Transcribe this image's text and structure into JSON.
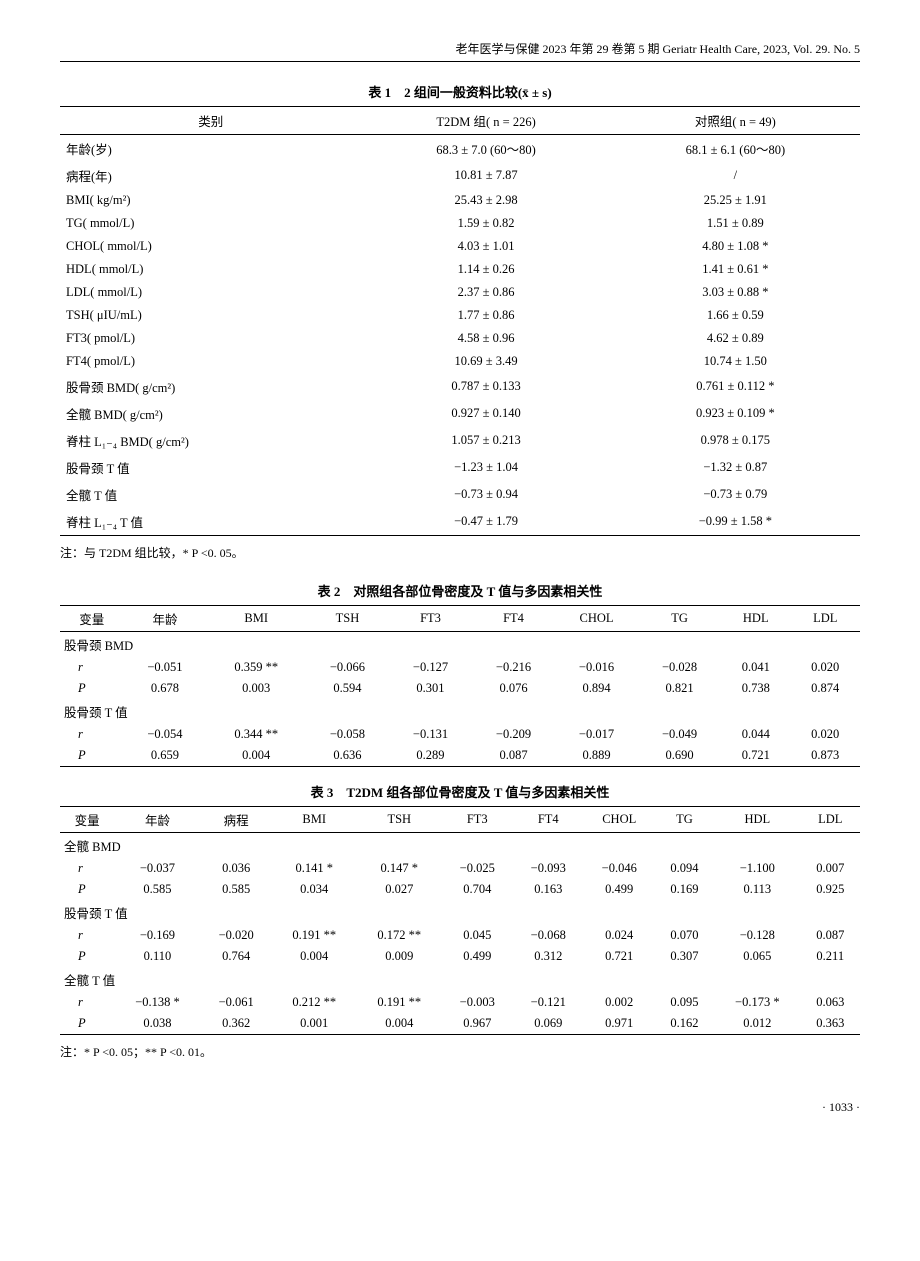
{
  "header": "老年医学与保健 2023 年第 29 卷第 5 期 Geriatr Health Care, 2023, Vol. 29. No. 5",
  "pageNum": "· 1033 ·",
  "table1": {
    "title": "表 1　2 组间一般资料比较(x̄ ± s)",
    "headers": [
      "类别",
      "T2DM 组( n = 226)",
      "对照组( n = 49)"
    ],
    "rows": [
      [
        "年龄(岁)",
        "68.3 ± 7.0 (60～80)",
        "68.1 ± 6.1 (60～80)"
      ],
      [
        "病程(年)",
        "10.81 ± 7.87",
        "/"
      ],
      [
        "BMI( kg/m²)",
        "25.43 ± 2.98",
        "25.25 ± 1.91"
      ],
      [
        "TG( mmol/L)",
        "1.59 ± 0.82",
        "1.51 ± 0.89"
      ],
      [
        "CHOL( mmol/L)",
        "4.03 ± 1.01",
        "4.80 ± 1.08 *"
      ],
      [
        "HDL( mmol/L)",
        "1.14 ± 0.26",
        "1.41 ± 0.61 *"
      ],
      [
        "LDL( mmol/L)",
        "2.37 ± 0.86",
        "3.03 ± 0.88 *"
      ],
      [
        "TSH( μIU/mL)",
        "1.77 ± 0.86",
        "1.66 ± 0.59"
      ],
      [
        "FT3( pmol/L)",
        "4.58 ± 0.96",
        "4.62 ± 0.89"
      ],
      [
        "FT4( pmol/L)",
        "10.69 ± 3.49",
        "10.74 ± 1.50"
      ],
      [
        "股骨颈 BMD( g/cm²)",
        "0.787 ± 0.133",
        "0.761 ± 0.112 *"
      ],
      [
        "全髋 BMD( g/cm²)",
        "0.927 ± 0.140",
        "0.923 ± 0.109 *"
      ],
      [
        "脊柱 L₁₋₄ BMD( g/cm²)",
        "1.057 ± 0.213",
        "0.978 ± 0.175"
      ],
      [
        "股骨颈 T 值",
        "−1.23 ± 1.04",
        "−1.32 ± 0.87"
      ],
      [
        "全髋 T 值",
        "−0.73 ± 0.94",
        "−0.73 ± 0.79"
      ],
      [
        "脊柱 L₁₋₄ T 值",
        "−0.47 ± 1.79",
        "−0.99 ± 1.58 *"
      ]
    ],
    "note": "注：与 T2DM 组比较，* P <0. 05。"
  },
  "table2": {
    "title": "表 2　对照组各部位骨密度及 T 值与多因素相关性",
    "headers": [
      "变量",
      "年龄",
      "BMI",
      "TSH",
      "FT3",
      "FT4",
      "CHOL",
      "TG",
      "HDL",
      "LDL"
    ],
    "sections": [
      {
        "name": "股骨颈 BMD",
        "r": [
          "−0.051",
          "0.359 **",
          "−0.066",
          "−0.127",
          "−0.216",
          "−0.016",
          "−0.028",
          "0.041",
          "0.020"
        ],
        "P": [
          "0.678",
          "0.003",
          "0.594",
          "0.301",
          "0.076",
          "0.894",
          "0.821",
          "0.738",
          "0.874"
        ]
      },
      {
        "name": "股骨颈 T 值",
        "r": [
          "−0.054",
          "0.344 **",
          "−0.058",
          "−0.131",
          "−0.209",
          "−0.017",
          "−0.049",
          "0.044",
          "0.020"
        ],
        "P": [
          "0.659",
          "0.004",
          "0.636",
          "0.289",
          "0.087",
          "0.889",
          "0.690",
          "0.721",
          "0.873"
        ]
      }
    ]
  },
  "table3": {
    "title": "表 3　T2DM 组各部位骨密度及 T 值与多因素相关性",
    "headers": [
      "变量",
      "年龄",
      "病程",
      "BMI",
      "TSH",
      "FT3",
      "FT4",
      "CHOL",
      "TG",
      "HDL",
      "LDL"
    ],
    "sections": [
      {
        "name": "全髋 BMD",
        "r": [
          "−0.037",
          "0.036",
          "0.141 *",
          "0.147 *",
          "−0.025",
          "−0.093",
          "−0.046",
          "0.094",
          "−1.100",
          "0.007"
        ],
        "P": [
          "0.585",
          "0.585",
          "0.034",
          "0.027",
          "0.704",
          "0.163",
          "0.499",
          "0.169",
          "0.113",
          "0.925"
        ]
      },
      {
        "name": "股骨颈 T 值",
        "r": [
          "−0.169",
          "−0.020",
          "0.191 **",
          "0.172 **",
          "0.045",
          "−0.068",
          "0.024",
          "0.070",
          "−0.128",
          "0.087"
        ],
        "P": [
          "0.110",
          "0.764",
          "0.004",
          "0.009",
          "0.499",
          "0.312",
          "0.721",
          "0.307",
          "0.065",
          "0.211"
        ]
      },
      {
        "name": "全髋 T 值",
        "r": [
          "−0.138 *",
          "−0.061",
          "0.212 **",
          "0.191 **",
          "−0.003",
          "−0.121",
          "0.002",
          "0.095",
          "−0.173 *",
          "0.063"
        ],
        "P": [
          "0.038",
          "0.362",
          "0.001",
          "0.004",
          "0.967",
          "0.069",
          "0.971",
          "0.162",
          "0.012",
          "0.363"
        ]
      }
    ],
    "note": "注：* P <0. 05；** P <0. 01。"
  }
}
